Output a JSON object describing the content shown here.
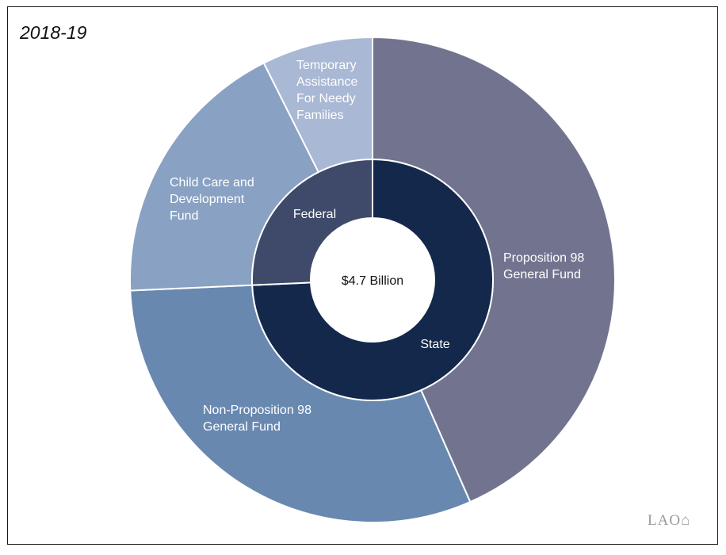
{
  "chart_data": {
    "type": "pie",
    "title": "2018-19",
    "center_label": "$4.7 Billion",
    "outer_ring": {
      "categories": [
        "Proposition 98 General Fund",
        "Non-Proposition 98 General Fund",
        "Child Care and Development Fund",
        "Temporary Assistance For Needy Families"
      ],
      "values": [
        43.4,
        30.9,
        18.3,
        7.4
      ],
      "colors": [
        "#72748f",
        "#6888b0",
        "#89a1c2",
        "#a9b8d4"
      ],
      "label_colors": [
        "#ffffff",
        "#ffffff",
        "#ffffff",
        "#ffffff"
      ]
    },
    "inner_ring": {
      "categories": [
        "State",
        "Federal"
      ],
      "values": [
        74.3,
        25.7
      ],
      "colors": [
        "#14284b",
        "#3f4a6a"
      ],
      "label_colors": [
        "#ffffff",
        "#ffffff"
      ]
    }
  },
  "logo_text": "LAO"
}
